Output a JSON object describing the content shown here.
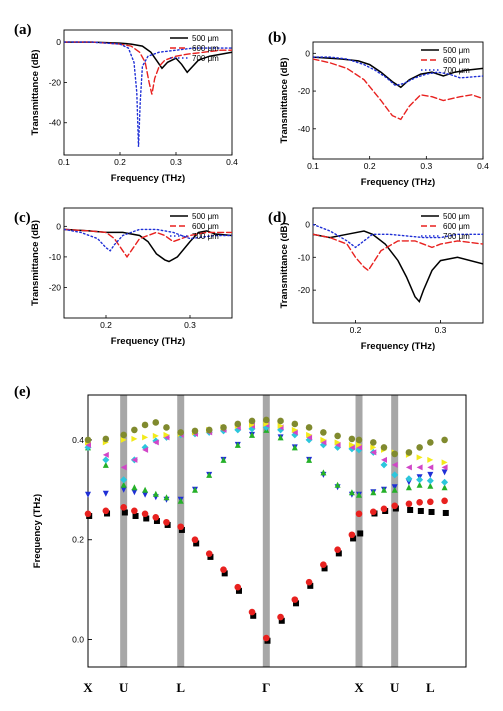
{
  "colors": {
    "s500": "#000000",
    "s600": "#e8211f",
    "s700": "#1f2fd6"
  },
  "chart_data": [
    {
      "label": "(a)",
      "type": "line",
      "xlabel": "Frequency (THz)",
      "ylabel": "Transmittance (dB)",
      "xlim": [
        0.1,
        0.4
      ],
      "ylim": [
        -56,
        6
      ],
      "xticks": [
        0.1,
        0.2,
        0.3,
        0.4
      ],
      "yticks": [
        0,
        -20,
        -40
      ],
      "legend_position": "top-right",
      "series": [
        {
          "name": "500 μm",
          "style": "solid",
          "x": [
            0.1,
            0.15,
            0.2,
            0.22,
            0.24,
            0.255,
            0.265,
            0.275,
            0.285,
            0.3,
            0.31,
            0.32,
            0.33,
            0.34,
            0.36,
            0.38,
            0.4
          ],
          "y": [
            0,
            0,
            -0.5,
            -1,
            -2,
            -5,
            -9,
            -13,
            -10,
            -8,
            -11,
            -15,
            -12,
            -9,
            -7,
            -6,
            -5
          ]
        },
        {
          "name": "600 μm",
          "style": "dash",
          "x": [
            0.1,
            0.15,
            0.2,
            0.22,
            0.235,
            0.245,
            0.252,
            0.257,
            0.262,
            0.27,
            0.28,
            0.3,
            0.32,
            0.35,
            0.38,
            0.4
          ],
          "y": [
            0,
            0,
            -1,
            -2,
            -5,
            -10,
            -20,
            -26,
            -18,
            -12,
            -9,
            -7,
            -6,
            -5,
            -4,
            -4
          ]
        },
        {
          "name": "700 μm",
          "style": "dot",
          "x": [
            0.1,
            0.15,
            0.2,
            0.215,
            0.225,
            0.23,
            0.233,
            0.236,
            0.24,
            0.25,
            0.27,
            0.3,
            0.33,
            0.36,
            0.4
          ],
          "y": [
            0,
            0,
            -1,
            -3,
            -10,
            -25,
            -52,
            -30,
            -12,
            -7,
            -5,
            -4,
            -3,
            -3,
            -3
          ]
        }
      ]
    },
    {
      "label": "(b)",
      "type": "line",
      "xlabel": "Frequency (THz)",
      "ylabel": "Transmittance (dB)",
      "xlim": [
        0.1,
        0.4
      ],
      "ylim": [
        -56,
        6
      ],
      "xticks": [
        0.1,
        0.2,
        0.3,
        0.4
      ],
      "yticks": [
        0,
        -20,
        -40
      ],
      "legend_position": "top-right",
      "series": [
        {
          "name": "500 μm",
          "style": "solid",
          "x": [
            0.1,
            0.15,
            0.18,
            0.2,
            0.22,
            0.24,
            0.255,
            0.27,
            0.29,
            0.31,
            0.33,
            0.35,
            0.37,
            0.4
          ],
          "y": [
            -2,
            -3,
            -4,
            -6,
            -10,
            -15,
            -18,
            -14,
            -11,
            -10,
            -12,
            -10,
            -9,
            -8
          ]
        },
        {
          "name": "600 μm",
          "style": "dash",
          "x": [
            0.1,
            0.13,
            0.16,
            0.19,
            0.22,
            0.24,
            0.255,
            0.27,
            0.29,
            0.31,
            0.33,
            0.36,
            0.38,
            0.4
          ],
          "y": [
            -3,
            -5,
            -8,
            -14,
            -25,
            -33,
            -35,
            -28,
            -22,
            -23,
            -25,
            -23,
            -22,
            -24
          ]
        },
        {
          "name": "700 μm",
          "style": "dot",
          "x": [
            0.1,
            0.13,
            0.16,
            0.19,
            0.21,
            0.23,
            0.245,
            0.26,
            0.28,
            0.3,
            0.32,
            0.34,
            0.36,
            0.4
          ],
          "y": [
            -2,
            -2,
            -3,
            -6,
            -9,
            -13,
            -17,
            -16,
            -13,
            -11,
            -10,
            -11,
            -13,
            -12
          ]
        }
      ]
    },
    {
      "label": "(c)",
      "type": "line",
      "xlabel": "Frequency (THz)",
      "ylabel": "Transmittance (dB)",
      "xlim": [
        0.15,
        0.35
      ],
      "ylim": [
        -30,
        6
      ],
      "xticks": [
        0.2,
        0.3
      ],
      "yticks": [
        0,
        -10,
        -20
      ],
      "legend_position": "top-right",
      "series": [
        {
          "name": "500 μm",
          "style": "solid",
          "x": [
            0.15,
            0.18,
            0.2,
            0.22,
            0.24,
            0.25,
            0.26,
            0.27,
            0.275,
            0.285,
            0.3,
            0.31,
            0.32,
            0.33,
            0.35
          ],
          "y": [
            -1,
            -1.5,
            -2,
            -2,
            -3,
            -5,
            -9,
            -11,
            -11.5,
            -10,
            -5,
            -2,
            -1.5,
            -2.5,
            -3
          ]
        },
        {
          "name": "600 μm",
          "style": "dash",
          "x": [
            0.15,
            0.18,
            0.2,
            0.21,
            0.22,
            0.225,
            0.23,
            0.24,
            0.25,
            0.26,
            0.27,
            0.28,
            0.3,
            0.32,
            0.35
          ],
          "y": [
            -1,
            -1.5,
            -2,
            -4,
            -8,
            -10,
            -8,
            -4,
            -3,
            -2,
            -3,
            -5,
            -3,
            -2,
            -2
          ]
        },
        {
          "name": "700 μm",
          "style": "dot",
          "x": [
            0.15,
            0.17,
            0.19,
            0.2,
            0.205,
            0.21,
            0.22,
            0.23,
            0.24,
            0.26,
            0.28,
            0.3,
            0.33,
            0.35
          ],
          "y": [
            -1,
            -2,
            -4,
            -7,
            -8,
            -6,
            -3,
            -2,
            -1,
            -1,
            -2,
            -4,
            -3,
            -3
          ]
        }
      ]
    },
    {
      "label": "(d)",
      "type": "line",
      "xlabel": "Frequency (THz)",
      "ylabel": "Transmittance (dB)",
      "xlim": [
        0.15,
        0.35
      ],
      "ylim": [
        -30,
        5
      ],
      "xticks": [
        0.2,
        0.3
      ],
      "yticks": [
        0,
        -10,
        -20
      ],
      "legend_position": "top-right",
      "series": [
        {
          "name": "500 μm",
          "style": "solid",
          "x": [
            0.15,
            0.17,
            0.19,
            0.21,
            0.22,
            0.235,
            0.25,
            0.26,
            0.27,
            0.275,
            0.28,
            0.29,
            0.3,
            0.32,
            0.35
          ],
          "y": [
            -3,
            -4,
            -3,
            -2,
            -3,
            -6,
            -11,
            -16,
            -22,
            -23.5,
            -20,
            -14,
            -11,
            -10,
            -12
          ]
        },
        {
          "name": "600 μm",
          "style": "dash",
          "x": [
            0.15,
            0.17,
            0.19,
            0.2,
            0.21,
            0.215,
            0.22,
            0.23,
            0.25,
            0.27,
            0.29,
            0.3,
            0.32,
            0.35
          ],
          "y": [
            -3,
            -4,
            -6,
            -10,
            -13,
            -14,
            -12,
            -8,
            -5,
            -5,
            -7,
            -6,
            -5,
            -6
          ]
        },
        {
          "name": "700 μm",
          "style": "dot",
          "x": [
            0.15,
            0.17,
            0.19,
            0.2,
            0.21,
            0.22,
            0.24,
            0.26,
            0.28,
            0.3,
            0.32,
            0.35
          ],
          "y": [
            0,
            -2,
            -5,
            -7,
            -5,
            -3,
            -3,
            -3.5,
            -4,
            -4,
            -3,
            -3
          ]
        }
      ]
    },
    {
      "label": "(e)",
      "type": "scatter",
      "ylabel": "Frequency (THz)",
      "ylim": [
        -0.055,
        0.49
      ],
      "yticks": [
        0.0,
        0.2,
        0.4
      ],
      "xlim": [
        0,
        10.6
      ],
      "k_points": [
        {
          "label": "X",
          "pos": 0
        },
        {
          "label": "U",
          "pos": 1
        },
        {
          "label": "L",
          "pos": 2.6
        },
        {
          "label": "Γ",
          "pos": 5
        },
        {
          "label": "X",
          "pos": 7.6
        },
        {
          "label": "U",
          "pos": 8.6
        },
        {
          "label": "L",
          "pos": 9.6
        }
      ],
      "shaded_x": [
        1,
        2.6,
        5,
        7.6,
        8.6
      ],
      "bands": [
        {
          "color": "#000000",
          "marker": "square",
          "x": [
            0,
            0.5,
            1,
            1.3,
            1.6,
            1.9,
            2.2,
            2.6,
            3,
            3.4,
            3.8,
            4.2,
            4.6,
            5,
            5.4,
            5.8,
            6.2,
            6.6,
            7,
            7.4,
            7.6,
            8,
            8.3,
            8.6,
            9,
            9.3,
            9.6,
            10
          ],
          "y": [
            0.25,
            0.255,
            0.257,
            0.25,
            0.245,
            0.24,
            0.232,
            0.222,
            0.195,
            0.168,
            0.135,
            0.1,
            0.05,
            0,
            0.04,
            0.075,
            0.11,
            0.145,
            0.175,
            0.205,
            0.215,
            0.255,
            0.26,
            0.265,
            0.262,
            0.26,
            0.258,
            0.256
          ]
        },
        {
          "color": "#e8211f",
          "marker": "circle",
          "x": [
            0,
            0.5,
            1,
            1.3,
            1.6,
            1.9,
            2.2,
            2.6,
            3,
            3.4,
            3.8,
            4.2,
            4.6,
            5,
            5.4,
            5.8,
            6.2,
            6.6,
            7,
            7.4,
            7.6,
            8,
            8.3,
            8.6,
            9,
            9.3,
            9.6,
            10
          ],
          "y": [
            0.252,
            0.258,
            0.265,
            0.258,
            0.252,
            0.245,
            0.235,
            0.226,
            0.2,
            0.172,
            0.14,
            0.105,
            0.055,
            0.003,
            0.045,
            0.08,
            0.115,
            0.15,
            0.18,
            0.21,
            0.252,
            0.256,
            0.262,
            0.268,
            0.272,
            0.275,
            0.276,
            0.278
          ]
        },
        {
          "color": "#1f2fd6",
          "marker": "triangle-down",
          "x": [
            0,
            0.5,
            1,
            1.3,
            1.6,
            1.9,
            2.2,
            2.6,
            3,
            3.4,
            3.8,
            4.2,
            4.6,
            5,
            5.4,
            5.8,
            6.2,
            6.6,
            7,
            7.4,
            7.6,
            8,
            8.3,
            8.6,
            9,
            9.3,
            9.6,
            10
          ],
          "y": [
            0.29,
            0.292,
            0.3,
            0.295,
            0.29,
            0.285,
            0.28,
            0.28,
            0.3,
            0.33,
            0.36,
            0.39,
            0.41,
            0.42,
            0.405,
            0.385,
            0.36,
            0.33,
            0.305,
            0.29,
            0.29,
            0.295,
            0.3,
            0.305,
            0.315,
            0.325,
            0.33,
            0.335
          ]
        },
        {
          "color": "#25b028",
          "marker": "triangle-up",
          "x": [
            0,
            0.5,
            1,
            1.3,
            1.6,
            1.9,
            2.2,
            2.6,
            3,
            3.4,
            3.8,
            4.2,
            4.6,
            5,
            5.4,
            5.8,
            6.2,
            6.6,
            7,
            7.4,
            7.6,
            8,
            8.3,
            8.6,
            9,
            9.3,
            9.6,
            10
          ],
          "y": [
            0.385,
            0.35,
            0.31,
            0.305,
            0.3,
            0.292,
            0.285,
            0.278,
            0.3,
            0.33,
            0.36,
            0.39,
            0.41,
            0.42,
            0.405,
            0.385,
            0.36,
            0.335,
            0.31,
            0.295,
            0.29,
            0.295,
            0.3,
            0.3,
            0.305,
            0.31,
            0.308,
            0.305
          ]
        },
        {
          "color": "#2cc6dc",
          "marker": "diamond",
          "x": [
            0,
            0.5,
            1,
            1.3,
            1.6,
            1.9,
            2.2,
            2.6,
            3,
            3.4,
            3.8,
            4.2,
            4.6,
            5,
            5.4,
            5.8,
            6.2,
            6.6,
            7,
            7.4,
            7.6,
            8,
            8.3,
            8.6,
            9,
            9.3,
            9.6,
            10
          ],
          "y": [
            0.385,
            0.36,
            0.32,
            0.36,
            0.385,
            0.398,
            0.405,
            0.41,
            0.412,
            0.415,
            0.418,
            0.42,
            0.422,
            0.425,
            0.42,
            0.41,
            0.4,
            0.39,
            0.385,
            0.382,
            0.38,
            0.375,
            0.35,
            0.33,
            0.322,
            0.32,
            0.318,
            0.315
          ]
        },
        {
          "color": "#d146c8",
          "marker": "triangle-left",
          "x": [
            0,
            0.5,
            1,
            1.3,
            1.6,
            1.9,
            2.2,
            2.6,
            3,
            3.4,
            3.8,
            4.2,
            4.6,
            5,
            5.4,
            5.8,
            6.2,
            6.6,
            7,
            7.4,
            7.6,
            8,
            8.3,
            8.6,
            9,
            9.3,
            9.6,
            10
          ],
          "y": [
            0.39,
            0.37,
            0.345,
            0.36,
            0.38,
            0.395,
            0.405,
            0.41,
            0.412,
            0.415,
            0.42,
            0.425,
            0.428,
            0.43,
            0.425,
            0.415,
            0.405,
            0.395,
            0.39,
            0.385,
            0.385,
            0.375,
            0.36,
            0.35,
            0.345,
            0.345,
            0.345,
            0.345
          ]
        },
        {
          "color": "#f2ea1a",
          "marker": "triangle-right",
          "x": [
            0,
            0.5,
            1,
            1.3,
            1.6,
            1.9,
            2.2,
            2.6,
            3,
            3.4,
            3.8,
            4.2,
            4.6,
            5,
            5.4,
            5.8,
            6.2,
            6.6,
            7,
            7.4,
            7.6,
            8,
            8.3,
            8.6,
            9,
            9.3,
            9.6,
            10
          ],
          "y": [
            0.395,
            0.395,
            0.4,
            0.402,
            0.405,
            0.408,
            0.41,
            0.412,
            0.415,
            0.42,
            0.425,
            0.428,
            0.43,
            0.432,
            0.428,
            0.42,
            0.41,
            0.4,
            0.395,
            0.39,
            0.39,
            0.385,
            0.38,
            0.375,
            0.37,
            0.365,
            0.36,
            0.355
          ]
        },
        {
          "color": "#808a2e",
          "marker": "circle",
          "x": [
            0,
            0.5,
            1,
            1.3,
            1.6,
            1.9,
            2.2,
            2.6,
            3,
            3.4,
            3.8,
            4.2,
            4.6,
            5,
            5.4,
            5.8,
            6.2,
            6.6,
            7,
            7.4,
            7.6,
            8,
            8.3,
            8.6,
            9,
            9.3,
            9.6,
            10
          ],
          "y": [
            0.4,
            0.402,
            0.41,
            0.42,
            0.43,
            0.435,
            0.425,
            0.415,
            0.418,
            0.42,
            0.425,
            0.432,
            0.438,
            0.44,
            0.438,
            0.432,
            0.425,
            0.415,
            0.408,
            0.402,
            0.4,
            0.395,
            0.385,
            0.372,
            0.375,
            0.385,
            0.395,
            0.4
          ]
        }
      ]
    }
  ]
}
